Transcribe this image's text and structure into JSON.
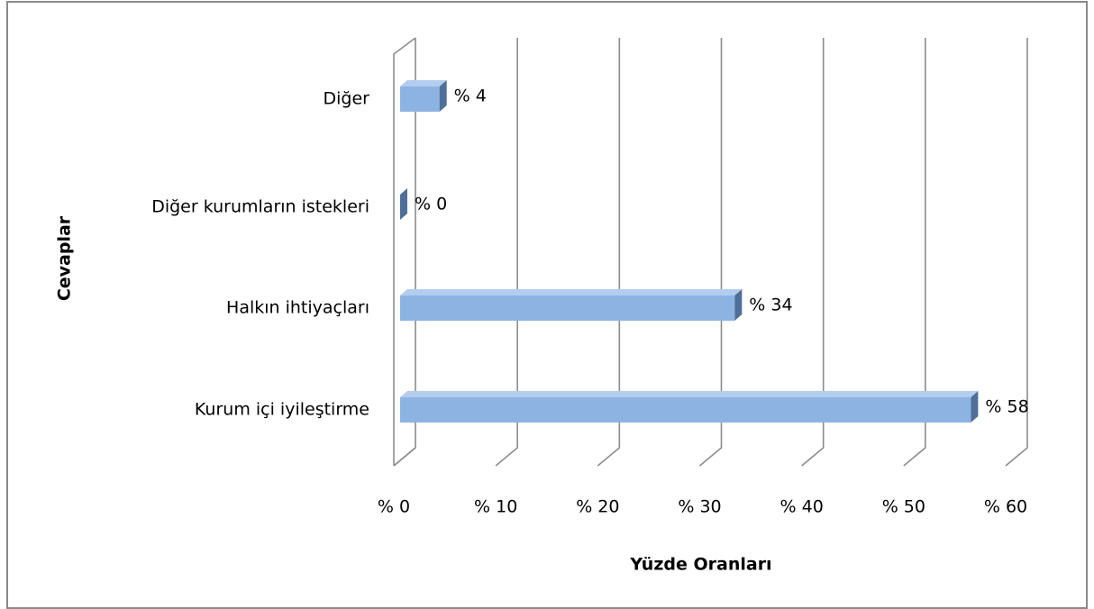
{
  "chart_data": {
    "type": "bar3d_horizontal",
    "categories": [
      "Diğer",
      "Diğer kurumların istekleri",
      "Halkın ihtiyaçları",
      "Kurum içi iyileştirme"
    ],
    "values": [
      4,
      0,
      34,
      58
    ],
    "value_labels": [
      "% 4",
      "% 0",
      "% 34",
      "% 58"
    ],
    "color": "#8db3e2",
    "xlim": [
      0,
      60
    ],
    "xticks": [
      {
        "value": 0,
        "label": "% 0"
      },
      {
        "value": 10,
        "label": "% 10"
      },
      {
        "value": 20,
        "label": "% 20"
      },
      {
        "value": 30,
        "label": "% 30"
      },
      {
        "value": 40,
        "label": "% 40"
      },
      {
        "value": 50,
        "label": "% 50"
      },
      {
        "value": 60,
        "label": "% 60"
      }
    ],
    "x_label": "Yüzde Oranları",
    "y_label": "Cevaplar",
    "grid": true
  }
}
